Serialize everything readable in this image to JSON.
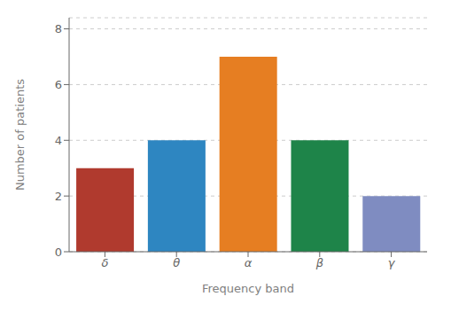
{
  "chart_data": {
    "type": "bar",
    "categories": [
      "δ",
      "θ",
      "α",
      "β",
      "γ"
    ],
    "values": [
      3,
      4,
      7,
      4,
      2
    ],
    "colors": [
      "#b03a2e",
      "#2e86c1",
      "#e67e22",
      "#1e8449",
      "#7f8cc1"
    ],
    "xlabel": "Frequency band",
    "ylabel": "Number of patients",
    "ylim": [
      0,
      8.4
    ],
    "yticks": [
      0,
      2,
      4,
      6,
      8
    ],
    "grid": true
  }
}
